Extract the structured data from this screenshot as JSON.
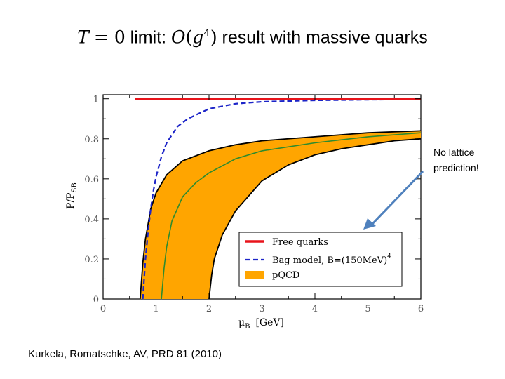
{
  "slide": {
    "title_math_1": "T",
    "title_math_2": "= 0",
    "title_text_1": " limit: ",
    "title_math_3": "O",
    "title_math_4": "(",
    "title_math_5": "g",
    "title_math_6": "4",
    "title_math_7": ")",
    "title_text_2": " result with massive quarks",
    "note_line1": "No lattice",
    "note_line2": "prediction!",
    "citation": "Kurkela, Romatschke, AV, PRD 81 (2010)"
  },
  "colors": {
    "free_quarks": "#e8141b",
    "bag_model": "#1c24c8",
    "pqcd_band": "#ffa500",
    "pqcd_central": "#2e8b2e",
    "arrow": "#4f81bd"
  },
  "chart_data": {
    "type": "line",
    "xlabel": "μ",
    "xlabel_sub": "B",
    "xlabel_unit": "[GeV]",
    "ylabel": "P/P",
    "ylabel_sub": "SB",
    "xlim": [
      0,
      6
    ],
    "ylim": [
      0,
      1.02
    ],
    "xticks": [
      "0",
      "1",
      "2",
      "3",
      "4",
      "5",
      "6"
    ],
    "yticks": [
      "0",
      "0.2",
      "0.4",
      "0.6",
      "0.8",
      "1"
    ],
    "grid": false,
    "legend_position": "bottom-right",
    "legend": [
      {
        "label": "Free quarks",
        "style": "solid-red"
      },
      {
        "label": "Bag model, B=(150MeV)",
        "sup": "4",
        "style": "dashed-blue"
      },
      {
        "label": "pQCD",
        "style": "orange-band"
      }
    ],
    "series": [
      {
        "name": "Free quarks",
        "x": [
          0.6,
          6.0
        ],
        "y": [
          1.0,
          1.0
        ]
      },
      {
        "name": "Bag model, B=(150MeV)⁴",
        "x": [
          0.75,
          0.8,
          0.85,
          0.9,
          0.95,
          1.0,
          1.1,
          1.2,
          1.4,
          1.6,
          2.0,
          2.5,
          3.0,
          4.0,
          5.0,
          6.0
        ],
        "y": [
          0.0,
          0.2,
          0.34,
          0.45,
          0.54,
          0.61,
          0.71,
          0.78,
          0.86,
          0.9,
          0.95,
          0.975,
          0.985,
          0.992,
          0.995,
          0.997
        ]
      },
      {
        "name": "pQCD upper",
        "x": [
          0.7,
          0.75,
          0.8,
          0.9,
          1.0,
          1.2,
          1.5,
          2.0,
          2.5,
          3.0,
          4.0,
          5.0,
          6.0
        ],
        "y": [
          0.0,
          0.18,
          0.3,
          0.45,
          0.53,
          0.62,
          0.69,
          0.74,
          0.77,
          0.79,
          0.81,
          0.83,
          0.84
        ]
      },
      {
        "name": "pQCD central",
        "x": [
          1.1,
          1.15,
          1.2,
          1.3,
          1.5,
          1.75,
          2.0,
          2.5,
          3.0,
          4.0,
          5.0,
          6.0
        ],
        "y": [
          0.0,
          0.15,
          0.26,
          0.39,
          0.51,
          0.58,
          0.63,
          0.7,
          0.74,
          0.78,
          0.81,
          0.83
        ]
      },
      {
        "name": "pQCD lower",
        "x": [
          2.0,
          2.05,
          2.1,
          2.25,
          2.5,
          3.0,
          3.5,
          4.0,
          4.5,
          5.0,
          5.5,
          6.0
        ],
        "y": [
          0.0,
          0.12,
          0.2,
          0.32,
          0.44,
          0.59,
          0.67,
          0.72,
          0.75,
          0.77,
          0.79,
          0.8
        ]
      }
    ]
  }
}
